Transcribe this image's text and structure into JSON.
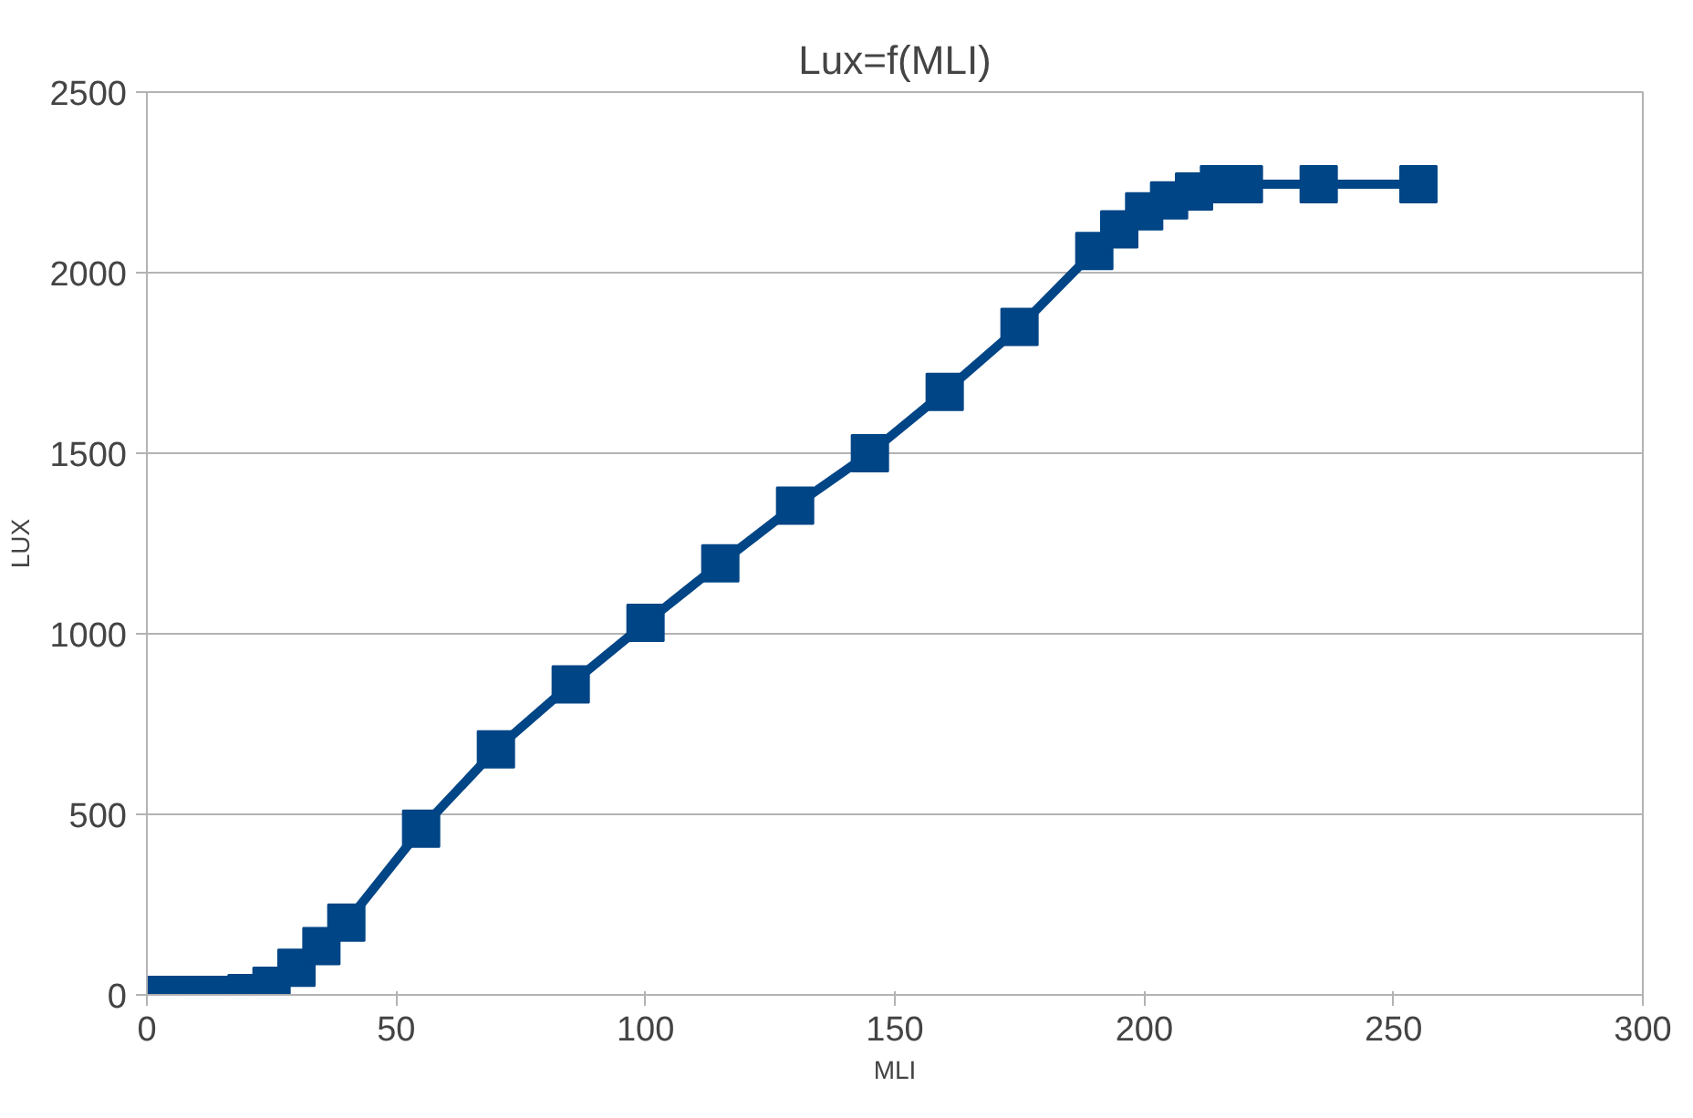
{
  "chart_data": {
    "type": "line",
    "title": "Lux=f(MLI)",
    "xlabel": "MLI",
    "ylabel": "LUX",
    "x": [
      0,
      5,
      10,
      15,
      20,
      25,
      30,
      35,
      40,
      55,
      70,
      85,
      100,
      115,
      130,
      145,
      160,
      175,
      190,
      195,
      200,
      205,
      210,
      215,
      220,
      235,
      255
    ],
    "series": [
      {
        "color": "#004586",
        "values": [
          0,
          0,
          0,
          0,
          5,
          25,
          75,
          135,
          200,
          460,
          680,
          860,
          1030,
          1195,
          1355,
          1500,
          1670,
          1850,
          2060,
          2120,
          2170,
          2200,
          2225,
          2245,
          2245,
          2245,
          2245
        ]
      }
    ],
    "xlim": [
      0,
      300
    ],
    "xticks": [
      0,
      50,
      100,
      150,
      200,
      250,
      300
    ],
    "ylim": [
      0,
      2500
    ],
    "yticks": [
      0,
      500,
      1000,
      1500,
      2000,
      2500
    ],
    "grid": "y",
    "marker": "square",
    "line_style": "solid"
  }
}
